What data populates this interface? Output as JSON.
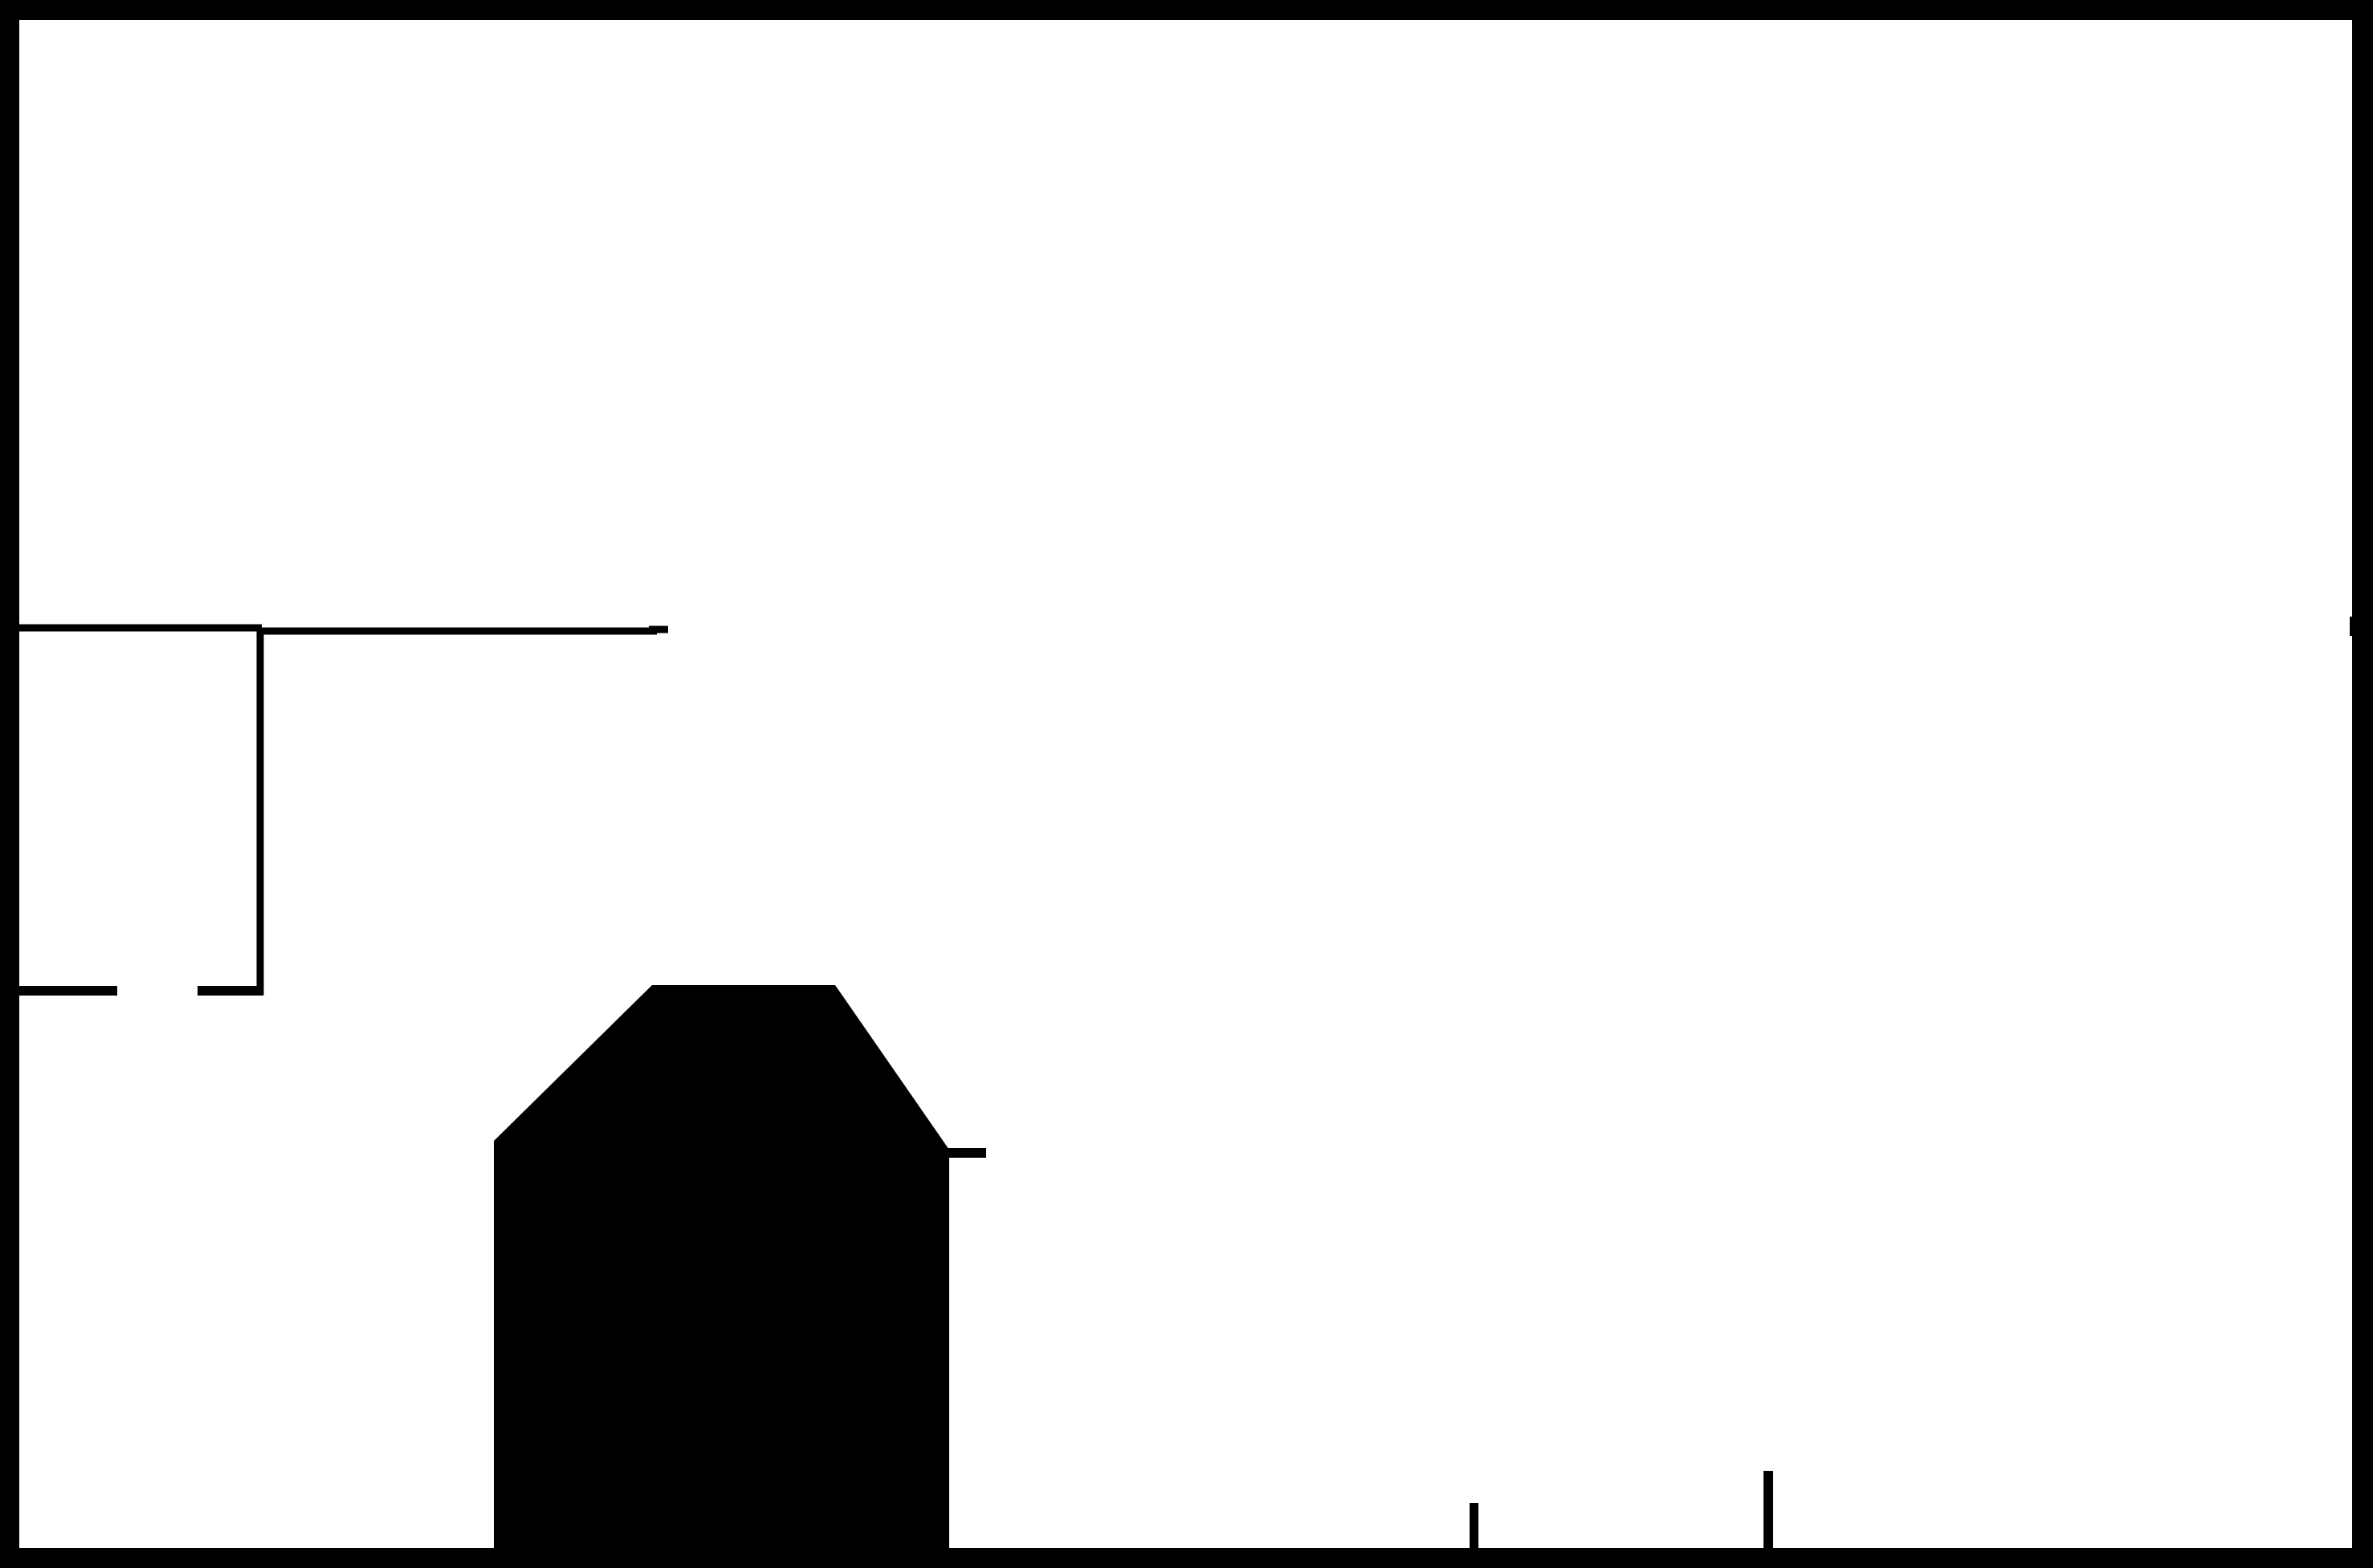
{
  "plan": {
    "ink_color": "#000000",
    "paper_color": "#ffffff"
  }
}
